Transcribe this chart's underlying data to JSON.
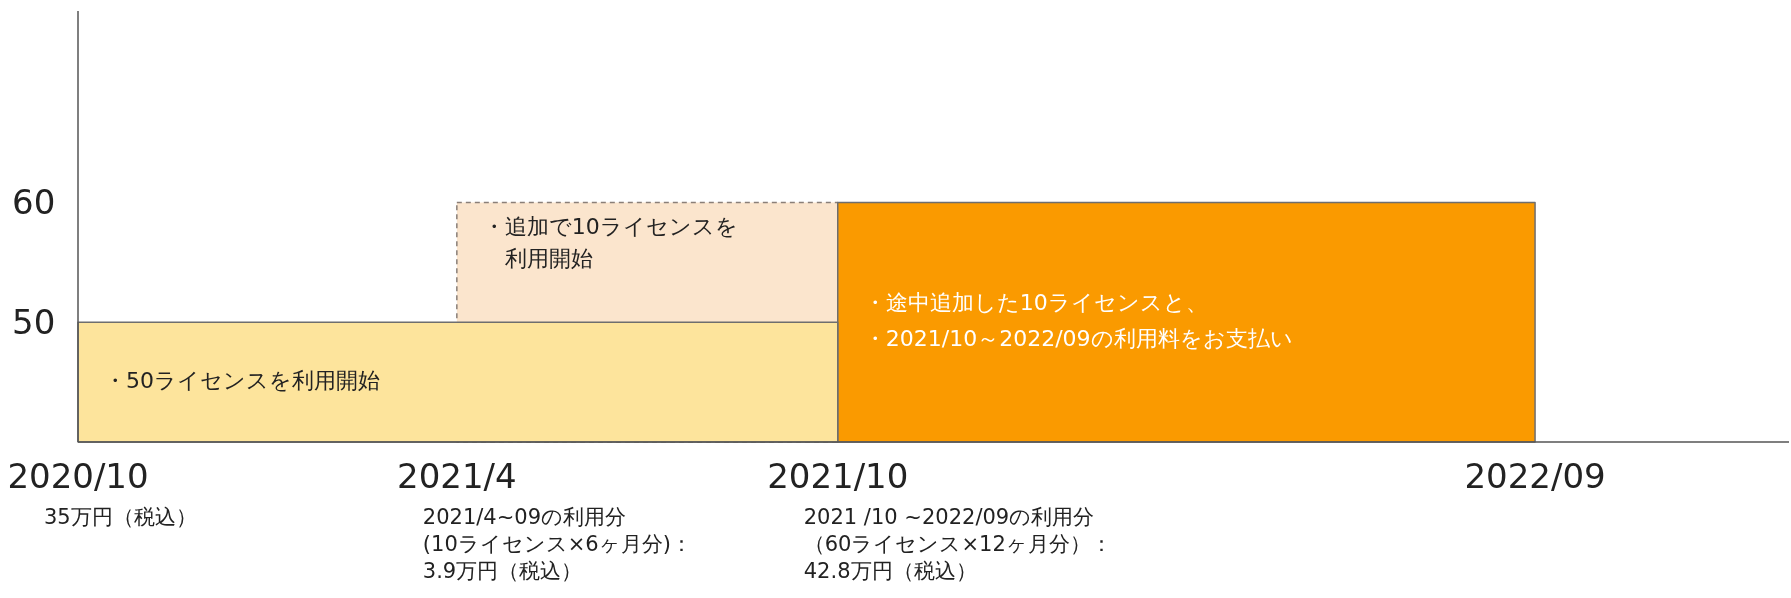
{
  "chart_data": {
    "type": "area",
    "xlim": [
      "2020-10",
      "2023-01"
    ],
    "ylim": [
      40,
      76
    ],
    "xticks": [
      {
        "value": "2020-10",
        "label": "2020/10"
      },
      {
        "value": "2021-04",
        "label": "2021/4"
      },
      {
        "value": "2021-10",
        "label": "2021/10"
      },
      {
        "value": "2022-09",
        "label": "2022/09"
      }
    ],
    "yticks": [
      50,
      60
    ],
    "series": [
      {
        "color": "#fde49c",
        "x": [
          "2020-10",
          "2021-10"
        ],
        "values": [
          50,
          50
        ]
      },
      {
        "color": "#fbe5cd",
        "x": [
          "2021-04",
          "2021-10"
        ],
        "values": [
          60,
          60
        ],
        "line_style": "dashed"
      },
      {
        "color": "#fa9a00",
        "x": [
          "2021-10",
          "2022-09"
        ],
        "values": [
          60,
          60
        ]
      }
    ],
    "annotations": [
      {
        "text": "・50ライセンスを利用開始",
        "x": "2020-10",
        "y": 45
      },
      {
        "text": "・追加で10ライセンスを利用開始",
        "x": "2021-04",
        "y": 56.5
      },
      {
        "text": "・途中追加した10ライセンスと、",
        "x": "2021-10",
        "y": 51.5
      },
      {
        "text": "・2021/10～2022/09の利用料をお支払い",
        "x": "2021-10",
        "y": 48.5
      },
      "35万円（税込）",
      "2021/4~09の利用分(10ライセンス×6ヶ月分)：3.9万円（税込）",
      "2021 /10 ~2022/09の利用分（60ライセンス×12ヶ月分）：42.8万円（税込）"
    ]
  }
}
